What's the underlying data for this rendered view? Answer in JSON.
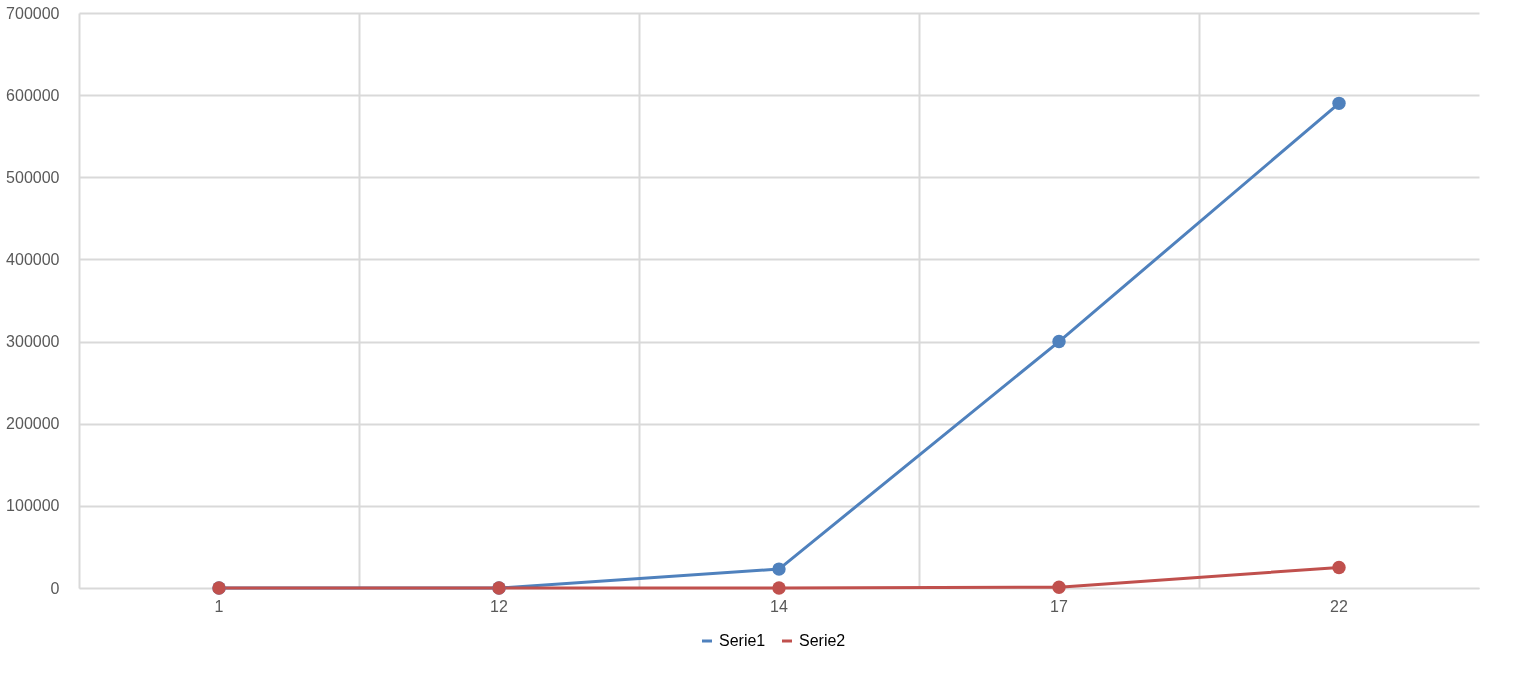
{
  "chart_data": {
    "type": "line",
    "categories": [
      "1",
      "12",
      "14",
      "17",
      "22"
    ],
    "series": [
      {
        "name": "Serie1",
        "color": "#4f81bd",
        "values": [
          0,
          0,
          23000,
          300000,
          590000
        ]
      },
      {
        "name": "Serie2",
        "color": "#c0504d",
        "values": [
          0,
          0,
          0,
          1000,
          25000
        ]
      }
    ],
    "ylim": [
      0,
      700000
    ],
    "yticks": [
      0,
      100000,
      200000,
      300000,
      400000,
      500000,
      600000,
      700000
    ],
    "grid": true,
    "legend": "bottom",
    "marker": "circle",
    "line_style": "solid"
  }
}
